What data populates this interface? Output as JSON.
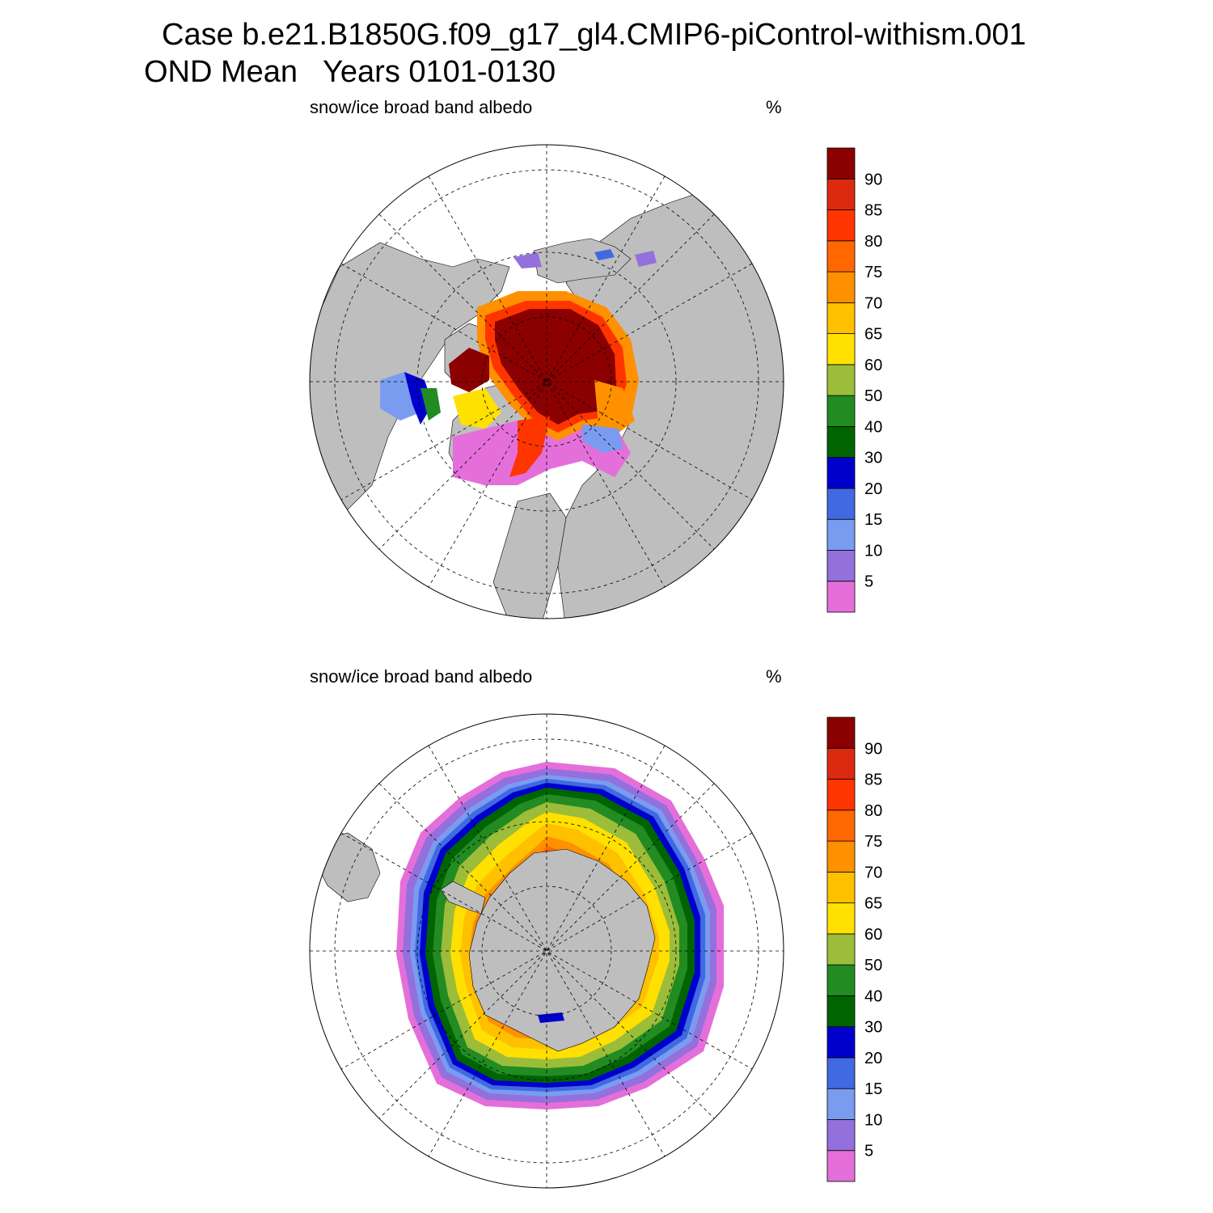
{
  "title": {
    "line1": "Case b.e21.B1850G.f09_g17_gl4.CMIP6-piControl-withism.001",
    "line2": "OND Mean   Years 0101-0130"
  },
  "panels": [
    {
      "id": "north",
      "label": "snow/ice broad band albedo",
      "unit": "%"
    },
    {
      "id": "south",
      "label": "snow/ice broad band albedo",
      "unit": "%"
    }
  ],
  "colors": {
    "land": "#bebebe",
    "background": "#ffffff",
    "levels": [
      "#e46fda",
      "#9370db",
      "#7a9cf0",
      "#4169e1",
      "#0000cd",
      "#006400",
      "#228b22",
      "#9bbd3a",
      "#ffe000",
      "#ffc000",
      "#ff9000",
      "#ff6800",
      "#ff3500",
      "#dc2a10",
      "#8b0000"
    ]
  },
  "colorbar": {
    "labels": [
      "5",
      "10",
      "15",
      "20",
      "30",
      "40",
      "50",
      "60",
      "65",
      "70",
      "75",
      "80",
      "85",
      "90"
    ]
  },
  "map_data": {
    "type": "polar-stereographic-filled-contour",
    "variable": "snow/ice broad band albedo",
    "units": "%",
    "season": "OND",
    "years": "0101-0130",
    "contour_levels": [
      5,
      10,
      15,
      20,
      30,
      40,
      50,
      60,
      65,
      70,
      75,
      80,
      85,
      90
    ],
    "north_max_range": ">90 (central Arctic)",
    "south_max_range": "60-85 (pack ice ring)"
  }
}
